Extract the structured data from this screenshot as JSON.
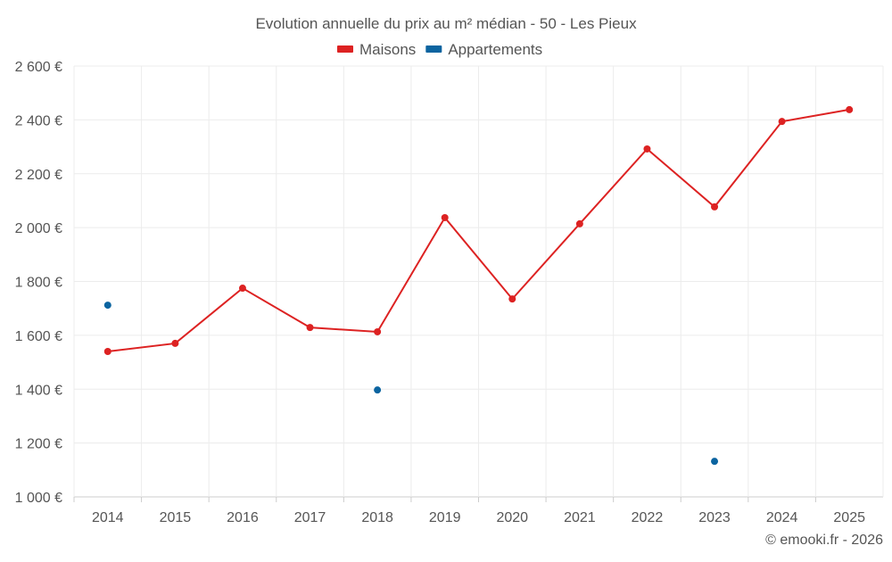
{
  "chart_data": {
    "type": "line",
    "title": "Evolution annuelle du prix au m² médian - 50 - Les Pieux",
    "xlabel": "",
    "ylabel": "",
    "categories": [
      "2014",
      "2015",
      "2016",
      "2017",
      "2018",
      "2019",
      "2020",
      "2021",
      "2022",
      "2023",
      "2024",
      "2025"
    ],
    "ylim": [
      1000,
      2600
    ],
    "yticks": [
      1000,
      1200,
      1400,
      1600,
      1800,
      2000,
      2200,
      2400,
      2600
    ],
    "ytick_labels": [
      "1 000 €",
      "1 200 €",
      "1 400 €",
      "1 600 €",
      "1 800 €",
      "2 000 €",
      "2 200 €",
      "2 400 €",
      "2 600 €"
    ],
    "grid": true,
    "legend_position": "top-center",
    "series": [
      {
        "name": "Maisons",
        "color": "#dd2222",
        "line": true,
        "values": [
          1540,
          1570,
          1775,
          1629,
          1613,
          2037,
          1735,
          2014,
          2292,
          2077,
          2394,
          2438
        ]
      },
      {
        "name": "Appartements",
        "color": "#0b64a0",
        "line": false,
        "values": [
          1712,
          null,
          null,
          null,
          1397,
          null,
          null,
          null,
          null,
          1132,
          null,
          null
        ]
      }
    ],
    "credit": "© emooki.fr - 2026"
  }
}
